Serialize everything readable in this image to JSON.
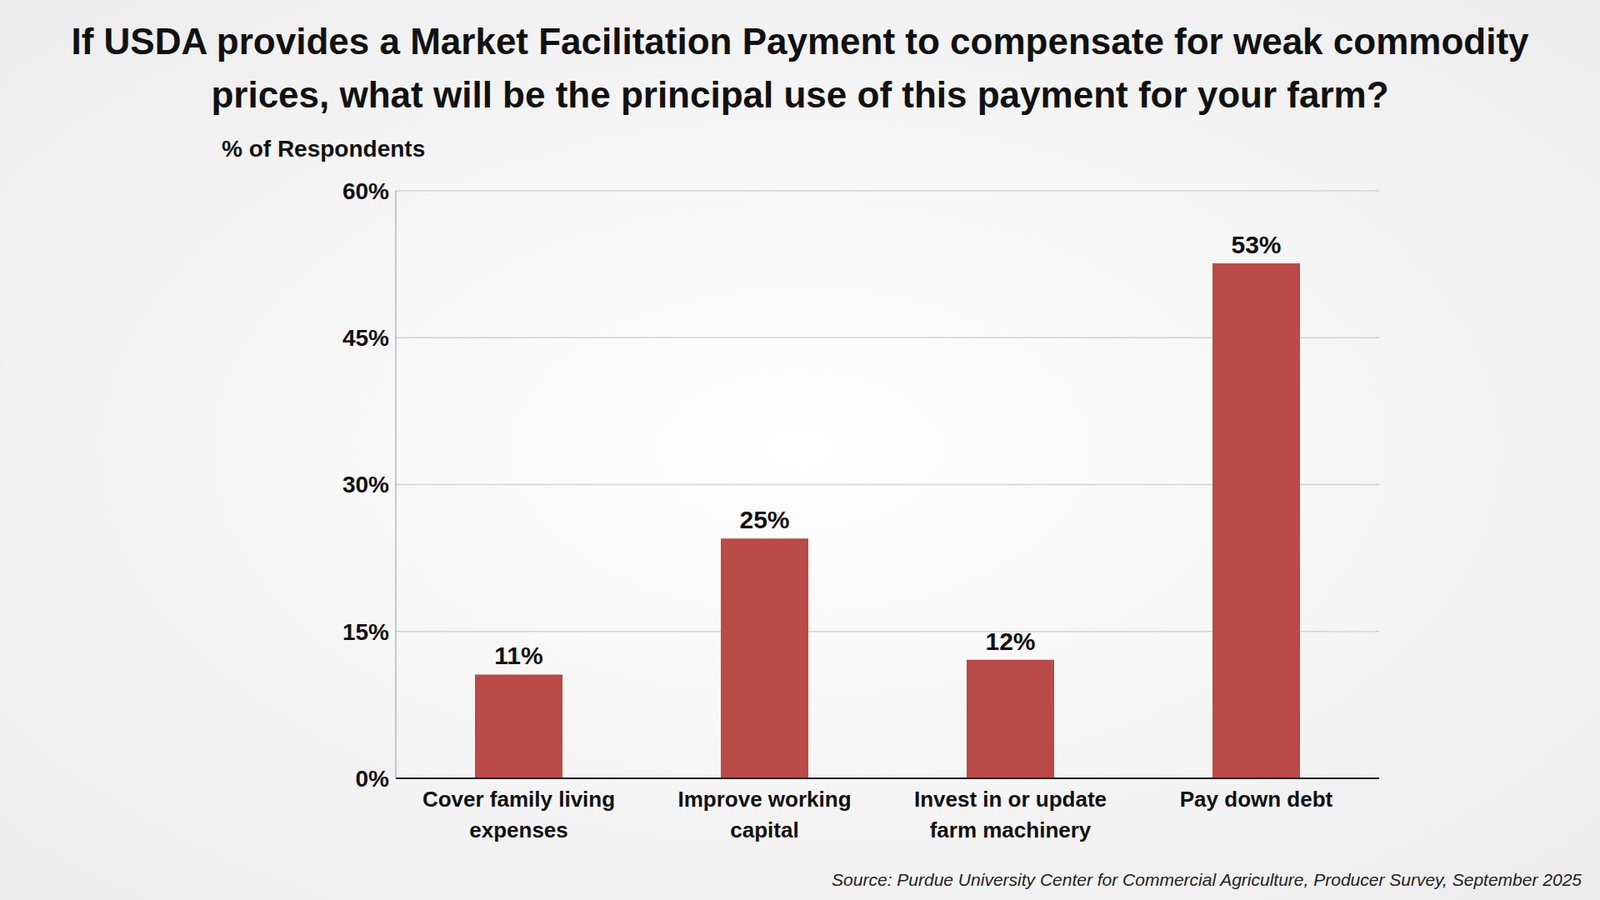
{
  "chart_data": {
    "type": "bar",
    "title": "If USDA provides a Market Facilitation Payment to compensate for weak commodity prices, what will be the principal use of this payment for your farm?",
    "y_label": "% of Respondents",
    "source": "Source: Purdue University Center for Commercial Agriculture, Producer Survey, September 2025",
    "categories": [
      "Cover family living expenses",
      "Improve working capital",
      "Invest in or update farm machinery",
      "Pay down debt"
    ],
    "values": [
      10.6,
      24.5,
      12.1,
      52.6
    ],
    "value_labels": [
      "11%",
      "25%",
      "12%",
      "53%"
    ],
    "data_labels": true,
    "color": "#b94a48",
    "ylim": [
      0,
      60
    ],
    "yticks": [
      {
        "value": 0,
        "label": "0%"
      },
      {
        "value": 15,
        "label": "15%"
      },
      {
        "value": 30,
        "label": "30%"
      },
      {
        "value": 45,
        "label": "45%"
      },
      {
        "value": 60,
        "label": "60%"
      }
    ],
    "grid": true
  }
}
